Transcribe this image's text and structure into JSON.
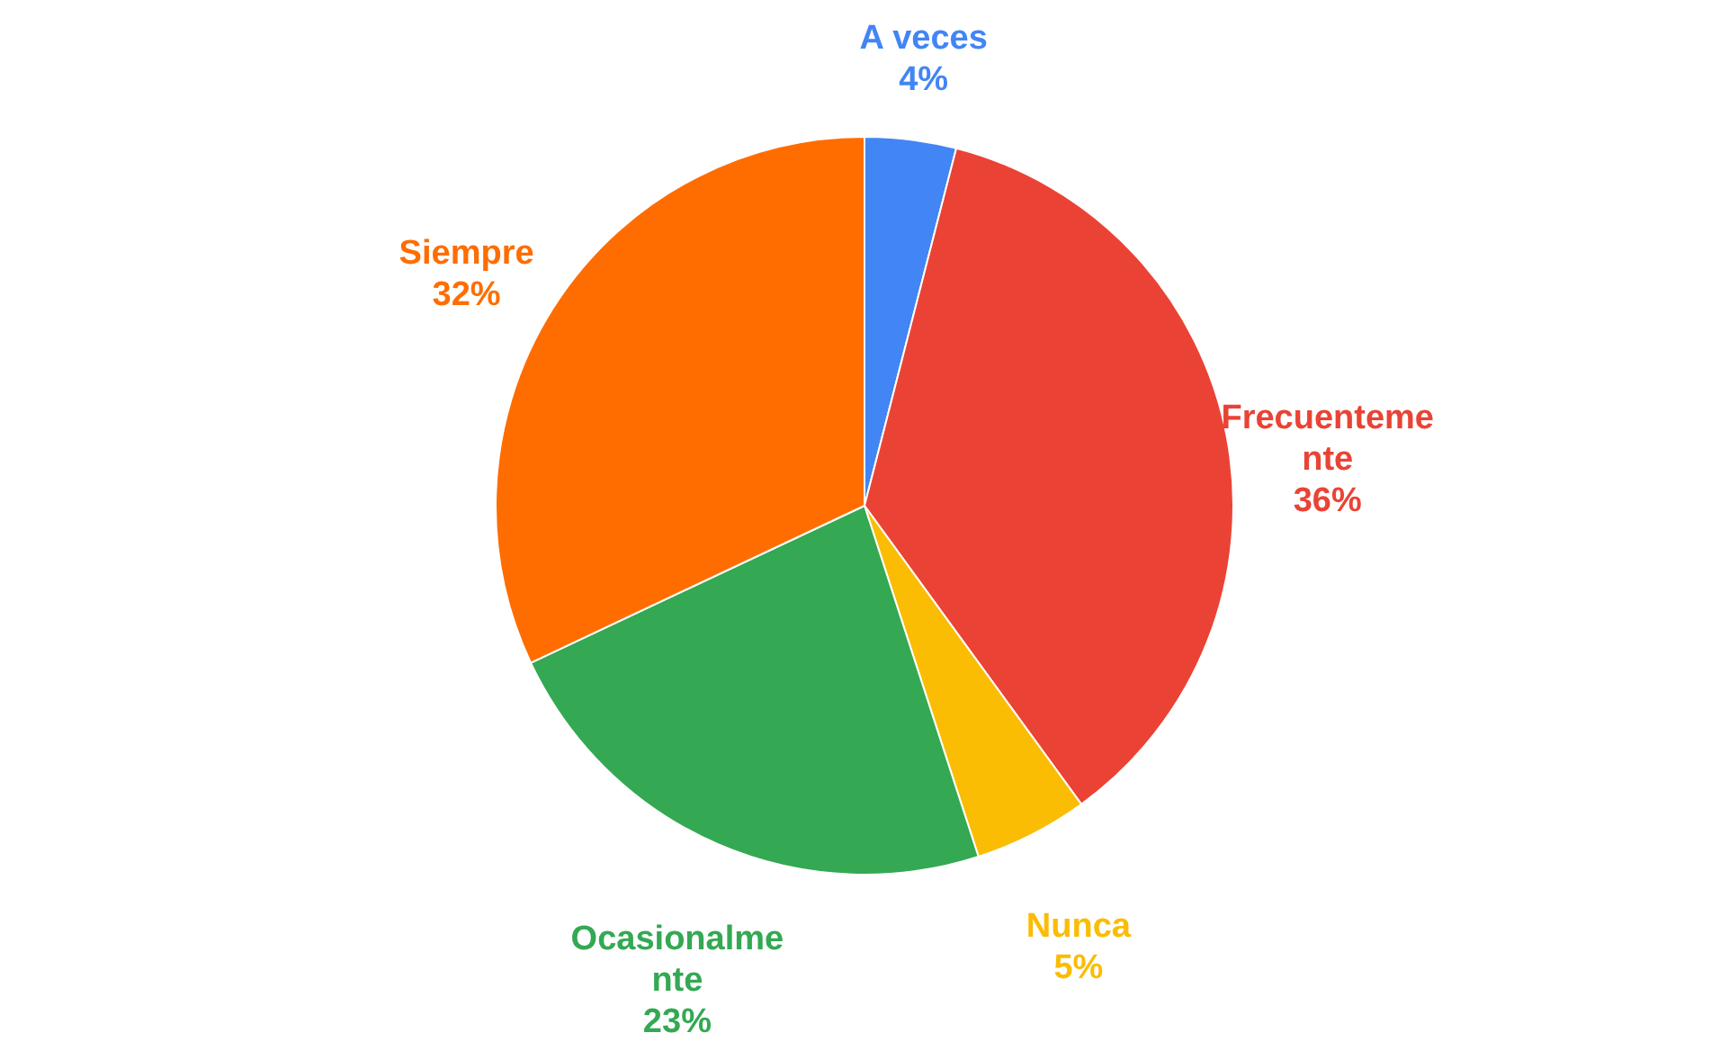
{
  "chart_data": {
    "type": "pie",
    "categories": [
      "A veces",
      "Frecuentemente",
      "Nunca",
      "Ocasionalmente",
      "Siempre"
    ],
    "values": [
      4,
      36,
      5,
      23,
      32
    ],
    "colors": [
      "#4285f4",
      "#ea4335",
      "#fbbc04",
      "#34a853",
      "#ff6d01"
    ],
    "value_labels": [
      "4%",
      "36%",
      "5%",
      "23%",
      "32%"
    ]
  }
}
